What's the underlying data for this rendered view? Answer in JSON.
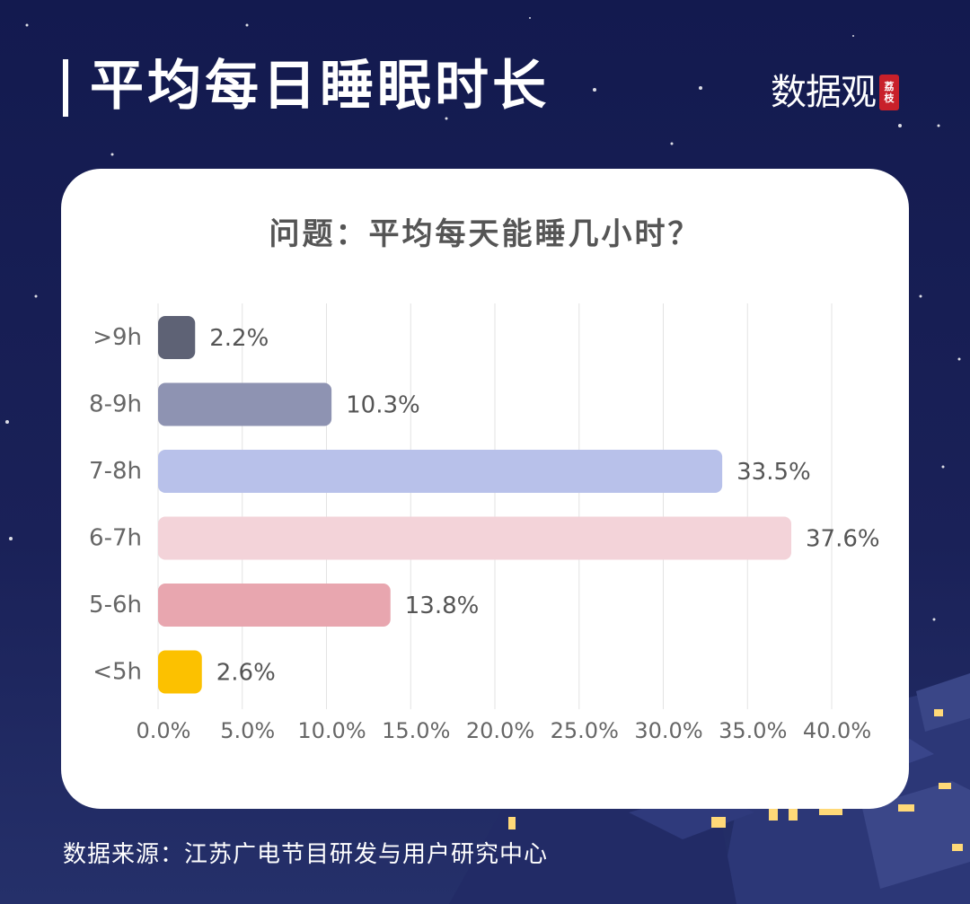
{
  "header": {
    "title": "平均每日睡眠时长",
    "logo_text": "数据观",
    "logo_seal": "荔枝"
  },
  "footer": {
    "source": "数据来源：江苏广电节目研发与用户研究中心"
  },
  "chart_data": {
    "type": "bar",
    "orientation": "horizontal",
    "title": "问题：平均每天能睡几小时？",
    "categories": [
      ">9h",
      "8-9h",
      "7-8h",
      "6-7h",
      "5-6h",
      "<5h"
    ],
    "values": [
      2.2,
      10.3,
      33.5,
      37.6,
      13.8,
      2.6
    ],
    "value_labels": [
      "2.2%",
      "10.3%",
      "33.5%",
      "37.6%",
      "13.8%",
      "2.6%"
    ],
    "colors": [
      "#5e6275",
      "#8e93b2",
      "#b8c1ea",
      "#f3d3d9",
      "#e8a6af",
      "#fcc100"
    ],
    "xlim": [
      0,
      40
    ],
    "xticks": [
      "0.0%",
      "5.0%",
      "10.0%",
      "15.0%",
      "20.0%",
      "25.0%",
      "30.0%",
      "35.0%",
      "40.0%"
    ],
    "grid": true
  }
}
